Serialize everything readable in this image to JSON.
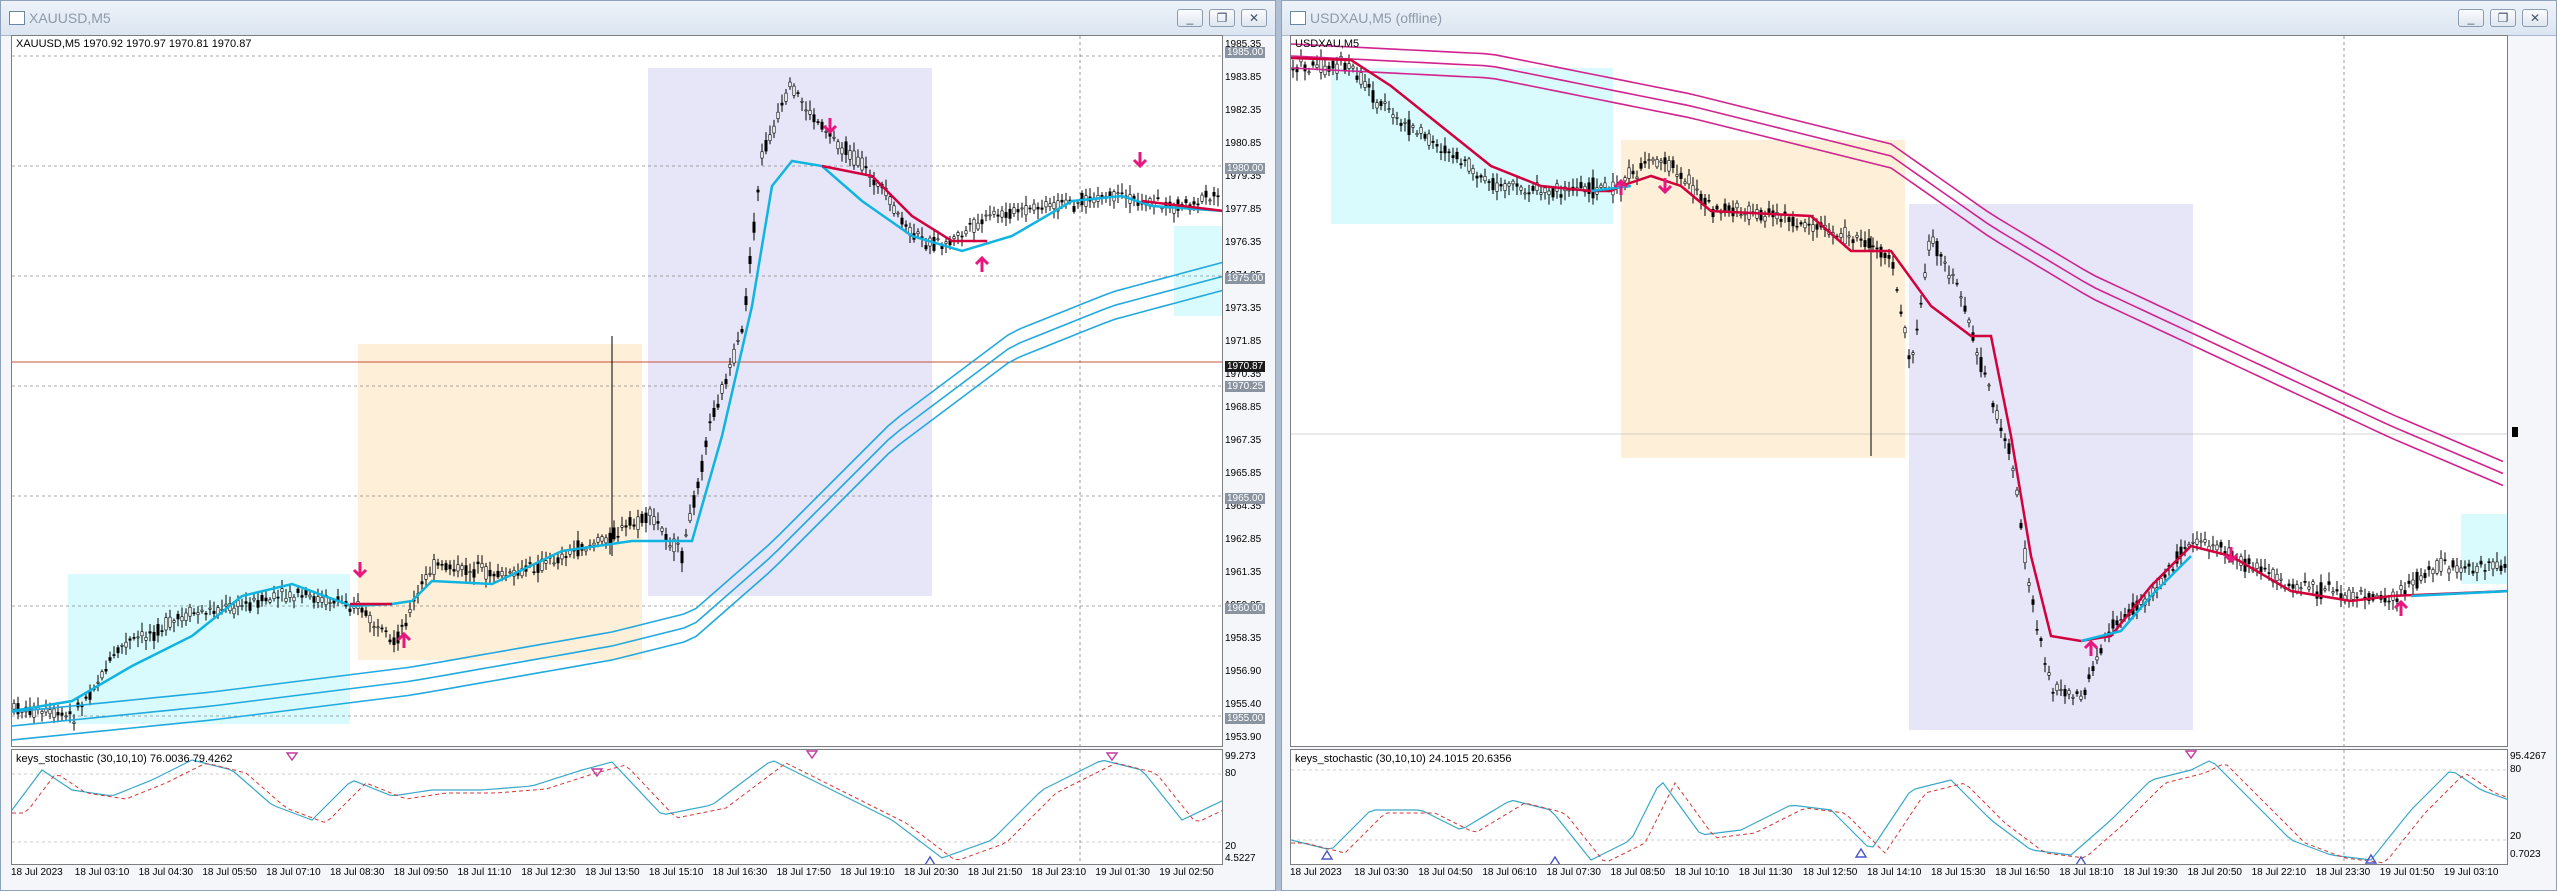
{
  "left": {
    "title": "XAUUSD,M5",
    "info": "XAUUSD,M5  1970.92 1970.97 1970.81 1970.87",
    "price_labels": [
      "1985.35",
      "1983.85",
      "1982.35",
      "1980.85",
      "1979.35",
      "1977.85",
      "1976.35",
      "1974.85",
      "1973.35",
      "1971.85",
      "1970.35",
      "1968.85",
      "1967.35",
      "1965.85",
      "1964.35",
      "1962.85",
      "1961.35",
      "1959.85",
      "1958.35",
      "1956.90",
      "1955.40",
      "1953.90"
    ],
    "tags": {
      "top": "1985.00",
      "t1": "1980.00",
      "t2": "1975.00",
      "cur": "1970.87",
      "bid": "1970.25",
      "t3": "1965.00",
      "t4": "1960.00",
      "t5": "1955.00"
    },
    "time_labels": [
      "18 Jul 2023",
      "18 Jul 03:10",
      "18 Jul 04:30",
      "18 Jul 05:50",
      "18 Jul 07:10",
      "18 Jul 08:30",
      "18 Jul 09:50",
      "18 Jul 11:10",
      "18 Jul 12:30",
      "18 Jul 13:50",
      "18 Jul 15:10",
      "18 Jul 16:30",
      "18 Jul 17:50",
      "18 Jul 19:10",
      "18 Jul 20:30",
      "18 Jul 21:50",
      "18 Jul 23:10",
      "19 Jul 01:30",
      "19 Jul 02:50"
    ],
    "stoch_label": "keys_stochastic (30,10,10) 76.0036 79.4262",
    "stoch_scale": [
      "99.273",
      "80",
      "20",
      "4.5227"
    ]
  },
  "right": {
    "title": "USDXAU,M5 (offline)",
    "info": "USDXAU,M5",
    "time_labels": [
      "18 Jul 2023",
      "18 Jul 03:30",
      "18 Jul 04:50",
      "18 Jul 06:10",
      "18 Jul 07:30",
      "18 Jul 08:50",
      "18 Jul 10:10",
      "18 Jul 11:30",
      "18 Jul 12:50",
      "18 Jul 14:10",
      "18 Jul 15:30",
      "18 Jul 16:50",
      "18 Jul 18:10",
      "18 Jul 19:30",
      "18 Jul 20:50",
      "18 Jul 22:10",
      "18 Jul 23:30",
      "19 Jul 01:50",
      "19 Jul 03:10"
    ],
    "stoch_label": "keys_stochastic (30,10,10) 24.1015 20.6356",
    "stoch_scale": [
      "95.4267",
      "80",
      "20",
      "0.7023"
    ]
  },
  "buttons": {
    "min": "_",
    "restore": "❐",
    "close": "✕"
  },
  "colors": {
    "bull_up": "#10b4e0",
    "bear": "#d2003c",
    "ma_left": "#22a9df",
    "ma_right": "#d1228e",
    "arrow": "#e6177f",
    "zone_cyan": "#d9fbfd",
    "zone_orange": "#fdefd8",
    "zone_lavender": "#e6e6f8"
  }
}
